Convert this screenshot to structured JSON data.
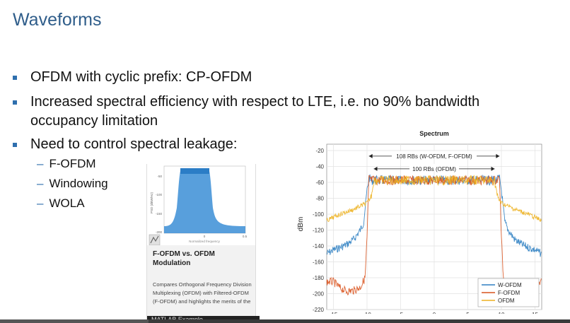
{
  "slide": {
    "title": "Waveforms",
    "bullets": [
      "OFDM with cyclic prefix: CP-OFDM",
      "Increased spectral efficiency with respect to LTE, i.e. no 90% bandwidth",
      "occupancy limitation",
      "Need to control spectral leakage:"
    ],
    "sub_bullets": [
      "F-OFDM",
      "Windowing",
      "WOLA"
    ],
    "colors": {
      "title": "#2f5d8a",
      "bullet": "#2f6fae"
    }
  },
  "example_card": {
    "title": "F-OFDM vs. OFDM Modulation",
    "description": "Compares Orthogonal Frequency Division Multiplexing (OFDM) with Filtered-OFDM (F-OFDM) and highlights the merits of the",
    "footer": "MATLAB Example",
    "thumbnail": {
      "y_ticks": [
        "-50",
        "-100",
        "-150",
        "-200"
      ],
      "x_ticks": [
        "0",
        "0.5"
      ],
      "ylabel": "PSD (dBW/Hz)",
      "xlabel": "Normalized frequency",
      "play_icon": "matlab-logo-icon"
    }
  },
  "chart_data": {
    "type": "line",
    "title": "Spectrum",
    "xlabel": "",
    "ylabel": "dBm",
    "xlim": [
      -16,
      16
    ],
    "ylim": [
      -220,
      -12
    ],
    "x_ticks": [
      "-15",
      "-10",
      "-5",
      "0",
      "5",
      "10",
      "15"
    ],
    "y_ticks": [
      "-20",
      "-40",
      "-60",
      "-80",
      "-100",
      "-120",
      "-140",
      "-160",
      "-180",
      "-200",
      "-220"
    ],
    "grid": true,
    "legend_position": "bottom-right",
    "annotations": [
      {
        "text": "108 RBs (W-OFDM, F-OFDM)",
        "x_from": -9.72,
        "x_to": 9.72,
        "y": -27
      },
      {
        "text": "100 RBs (OFDM)",
        "x_from": -9.0,
        "x_to": 9.0,
        "y": -43
      }
    ],
    "series": [
      {
        "name": "W-OFDM",
        "color": "#2e7fc2",
        "x": [
          -16,
          -15,
          -14,
          -13,
          -12,
          -11,
          -10.5,
          -10,
          -9.72,
          0,
          9.72,
          10,
          10.5,
          11,
          12,
          13,
          14,
          15,
          16
        ],
        "y": [
          -150,
          -145,
          -142,
          -138,
          -132,
          -120,
          -110,
          -70,
          -55,
          -55,
          -55,
          -70,
          -110,
          -120,
          -132,
          -138,
          -142,
          -145,
          -150
        ]
      },
      {
        "name": "F-OFDM",
        "color": "#d9531e",
        "x": [
          -16,
          -15,
          -14,
          -13,
          -12,
          -11,
          -10.3,
          -10,
          -9.72,
          0,
          9.72,
          10,
          10.3,
          11,
          12,
          13,
          14,
          15,
          16
        ],
        "y": [
          -185,
          -185,
          -193,
          -197,
          -196,
          -192,
          -180,
          -130,
          -55,
          -55,
          -55,
          -130,
          -180,
          -192,
          -196,
          -197,
          -193,
          -185,
          -185
        ]
      },
      {
        "name": "OFDM",
        "color": "#edb120",
        "x": [
          -16,
          -15,
          -14,
          -13,
          -12,
          -11,
          -10,
          -9.5,
          -9,
          0,
          9,
          9.5,
          10,
          11,
          12,
          13,
          14,
          15,
          16
        ],
        "y": [
          -108,
          -104,
          -100,
          -97,
          -94,
          -90,
          -86,
          -80,
          -55,
          -55,
          -55,
          -80,
          -86,
          -90,
          -94,
          -97,
          -100,
          -104,
          -108
        ]
      }
    ]
  }
}
